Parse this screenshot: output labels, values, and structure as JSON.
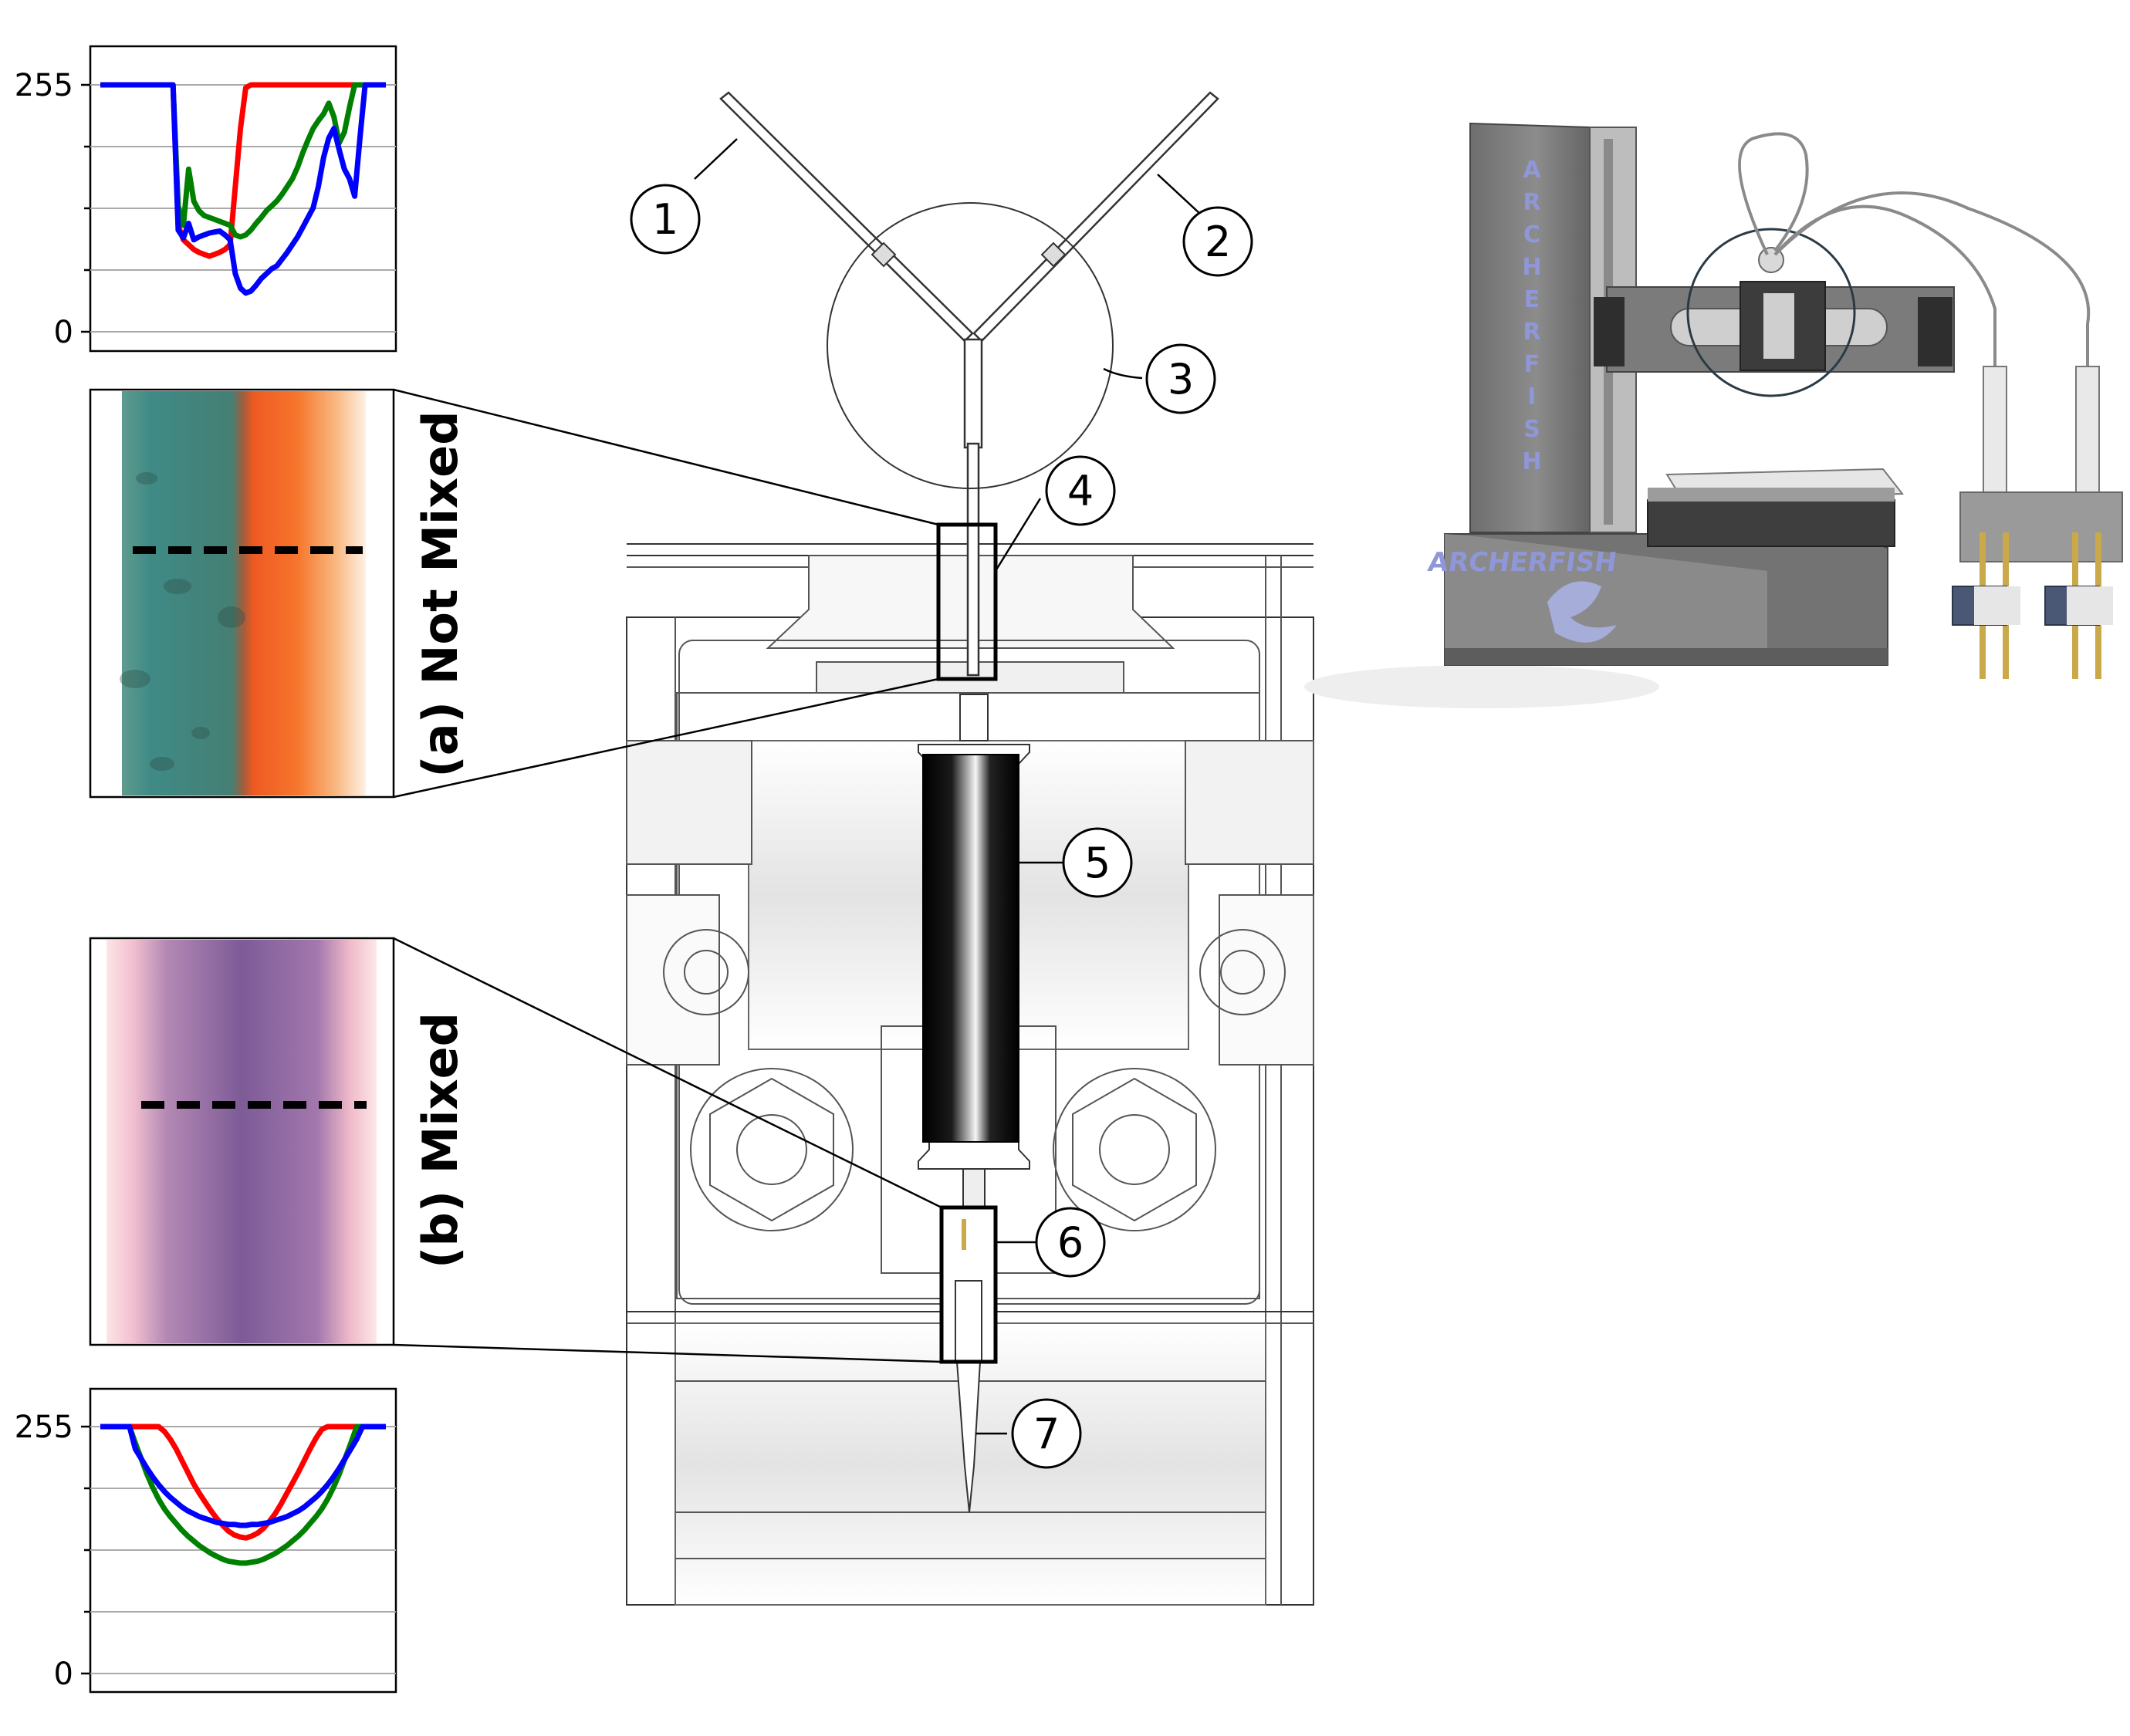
{
  "plots": {
    "top": {
      "y_ticks": [
        "255",
        "0"
      ],
      "series": [
        {
          "color": "#ff0000",
          "values": [
            255,
            255,
            255,
            255,
            255,
            255,
            255,
            255,
            255,
            255,
            255,
            255,
            255,
            255,
            255,
            110,
            95,
            90,
            85,
            82,
            80,
            78,
            80,
            82,
            85,
            90,
            150,
            210,
            252,
            255,
            255,
            255,
            255,
            255,
            255,
            255,
            255,
            255,
            255,
            255,
            255,
            255,
            255,
            255,
            255,
            255,
            255,
            255,
            255,
            255,
            255,
            255,
            255,
            255,
            255,
            255
          ]
        },
        {
          "color": "#008000",
          "values": [
            255,
            255,
            255,
            255,
            255,
            255,
            255,
            255,
            255,
            255,
            255,
            255,
            255,
            255,
            255,
            130,
            110,
            168,
            135,
            125,
            120,
            118,
            116,
            114,
            112,
            110,
            100,
            98,
            100,
            105,
            112,
            118,
            125,
            130,
            135,
            142,
            150,
            158,
            170,
            185,
            198,
            210,
            218,
            225,
            236,
            222,
            195,
            206,
            232,
            255,
            255,
            255,
            255,
            255,
            255,
            255
          ]
        },
        {
          "color": "#0000ff",
          "values": [
            255,
            255,
            255,
            255,
            255,
            255,
            255,
            255,
            255,
            255,
            255,
            255,
            255,
            255,
            255,
            105,
            97,
            112,
            95,
            98,
            100,
            102,
            103,
            104,
            100,
            95,
            60,
            45,
            40,
            42,
            48,
            55,
            60,
            65,
            68,
            75,
            82,
            90,
            98,
            108,
            118,
            128,
            150,
            180,
            200,
            210,
            188,
            168,
            158,
            140,
            200,
            255,
            255,
            255,
            255,
            255
          ]
        }
      ]
    },
    "bottom": {
      "y_ticks": [
        "255",
        "0"
      ],
      "series": [
        {
          "color": "#ff0000",
          "values": [
            255,
            255,
            255,
            255,
            255,
            255,
            255,
            255,
            255,
            255,
            255,
            250,
            242,
            232,
            220,
            208,
            196,
            186,
            177,
            168,
            160,
            153,
            147,
            143,
            141,
            140,
            142,
            145,
            150,
            157,
            165,
            175,
            186,
            197,
            208,
            220,
            232,
            243,
            252,
            255,
            255,
            255,
            255,
            255,
            255,
            255,
            255,
            255,
            255,
            255
          ]
        },
        {
          "color": "#008000",
          "values": [
            255,
            255,
            255,
            255,
            255,
            255,
            238,
            222,
            206,
            192,
            180,
            170,
            162,
            155,
            148,
            142,
            137,
            132,
            128,
            124,
            121,
            118,
            116,
            115,
            114,
            114,
            115,
            116,
            118,
            121,
            124,
            128,
            132,
            137,
            142,
            148,
            155,
            162,
            170,
            180,
            192,
            206,
            222,
            238,
            255,
            255,
            255,
            255,
            255,
            255
          ]
        },
        {
          "color": "#0000ff",
          "values": [
            255,
            255,
            255,
            255,
            255,
            255,
            232,
            222,
            212,
            203,
            195,
            188,
            182,
            177,
            172,
            168,
            165,
            162,
            160,
            158,
            156,
            155,
            154,
            154,
            153,
            153,
            154,
            154,
            155,
            156,
            158,
            160,
            162,
            165,
            168,
            172,
            177,
            182,
            188,
            195,
            203,
            212,
            222,
            232,
            242,
            255,
            255,
            255,
            255,
            255
          ]
        }
      ]
    }
  },
  "images": {
    "not_mixed": {
      "label": "(a) Not Mixed"
    },
    "mixed": {
      "label": "(b) Mixed"
    }
  },
  "callouts": [
    "1",
    "2",
    "3",
    "4",
    "5",
    "6",
    "7"
  ],
  "printer": {
    "brand_vertical": [
      "A",
      "R",
      "C",
      "H",
      "E",
      "R",
      "F",
      "I",
      "S",
      "H"
    ],
    "brand_base": "ARCHERFISH"
  }
}
